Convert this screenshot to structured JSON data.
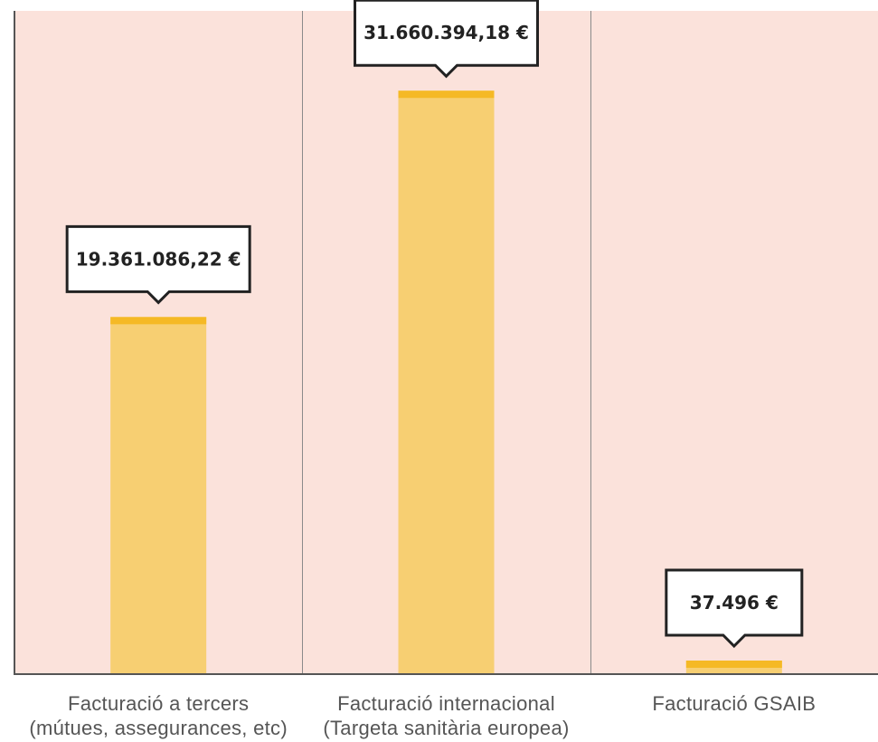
{
  "chart_data": {
    "type": "bar",
    "categories": [
      [
        "Facturació a tercers",
        "(mútues, assegurances, etc)"
      ],
      [
        "Facturació internacional",
        "(Targeta sanitària europea)"
      ],
      [
        "Facturació GSAIB"
      ]
    ],
    "values": [
      19361086.22,
      31660394.18,
      37496
    ],
    "data_labels": [
      "19.361.086,22 €",
      "31.660.394,18 €",
      "37.496 €"
    ],
    "ylim": [
      0,
      36000000
    ],
    "grid": false,
    "title": "",
    "xlabel": "",
    "ylabel": ""
  },
  "colors": {
    "panel_background": "#fbe2db",
    "bar_fill": "#f7cf72",
    "bar_top": "#f5b925",
    "axis": "#555555",
    "divider": "#8a8a8a",
    "callout_border": "#222222",
    "callout_fill": "#ffffff",
    "callout_text": "#222222",
    "label_text": "#555555"
  }
}
